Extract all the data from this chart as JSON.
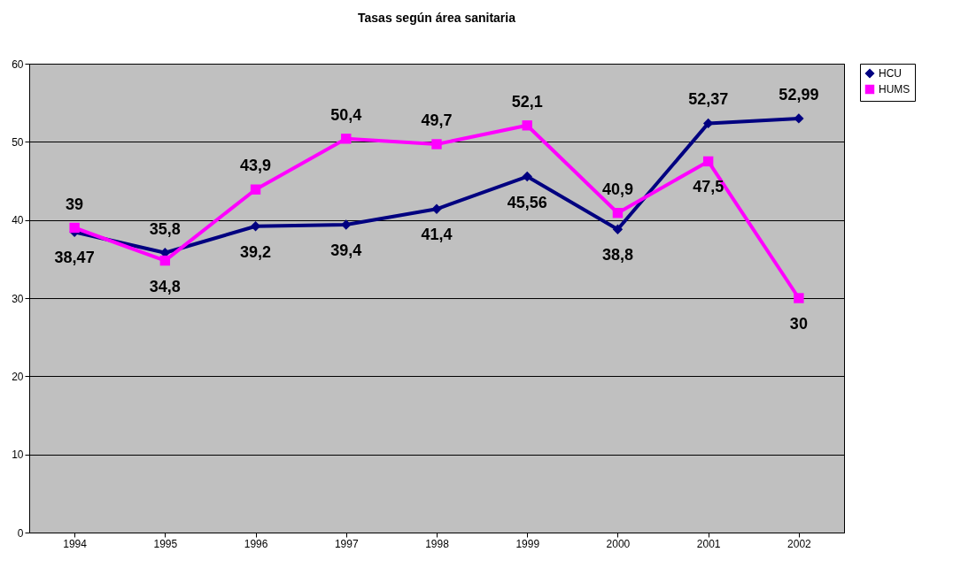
{
  "chart_data": {
    "type": "line",
    "title": "Tasas según área sanitaria",
    "categories": [
      "1994",
      "1995",
      "1996",
      "1997",
      "1998",
      "1999",
      "2000",
      "2001",
      "2002"
    ],
    "series": [
      {
        "name": "HCU",
        "color": "#000080",
        "marker": "diamond",
        "values": [
          38.47,
          35.8,
          39.2,
          39.4,
          41.4,
          45.56,
          38.8,
          52.37,
          52.99
        ],
        "value_labels": [
          "38,47",
          "35,8",
          "39,2",
          "39,4",
          "41,4",
          "45,56",
          "38,8",
          "52,37",
          "52,99"
        ]
      },
      {
        "name": "HUMS",
        "color": "#ff00ff",
        "marker": "square",
        "values": [
          39,
          34.8,
          43.9,
          50.4,
          49.7,
          52.1,
          40.9,
          47.5,
          30
        ],
        "value_labels": [
          "39",
          "34,8",
          "43,9",
          "50,4",
          "49,7",
          "52,1",
          "40,9",
          "47,5",
          "30"
        ]
      }
    ],
    "ylim": [
      0,
      60
    ],
    "yticks": [
      0,
      10,
      20,
      30,
      40,
      50,
      60
    ],
    "grid": "y",
    "legend": "right"
  }
}
